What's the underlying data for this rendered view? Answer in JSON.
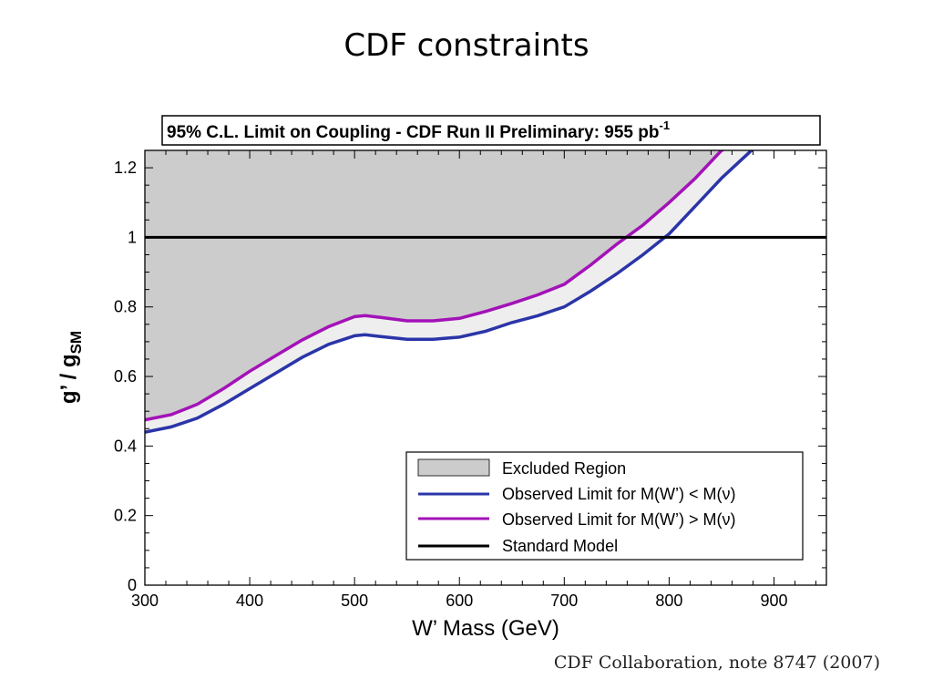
{
  "slide": {
    "title": "CDF constraints",
    "citation": "CDF Collaboration, note 8747 (2007)"
  },
  "chart_data": {
    "type": "line",
    "title": "95% C.L. Limit on Coupling - CDF Run II Preliminary: 955 pb",
    "title_superscript": "-1",
    "xlabel": "W’ Mass (GeV)",
    "ylabel_main": "g’ / g",
    "ylabel_sub": "SM",
    "xlim": [
      300,
      950
    ],
    "ylim": [
      0,
      1.25
    ],
    "xticks": [
      300,
      400,
      500,
      600,
      700,
      800,
      900
    ],
    "yticks": [
      0,
      0.2,
      0.4,
      0.6,
      0.8,
      1,
      1.2
    ],
    "ytick_labels": [
      "0",
      "0.2",
      "0.4",
      "0.6",
      "0.8",
      "1",
      "1.2"
    ],
    "legend_position": "bottom-right",
    "colors": {
      "excluded": "#cccccc",
      "band": "#eeeeee",
      "blue": "#2b35a8",
      "magenta": "#a312b8",
      "standard_model": "#000000"
    },
    "series": [
      {
        "name": "Observed Limit for M(W’) < M(ν)",
        "color": "#2b35a8",
        "x": [
          300,
          325,
          350,
          375,
          400,
          425,
          450,
          475,
          500,
          510,
          525,
          550,
          575,
          600,
          625,
          650,
          675,
          700,
          725,
          750,
          775,
          800,
          825,
          850,
          875,
          882
        ],
        "y": [
          0.44,
          0.455,
          0.48,
          0.52,
          0.565,
          0.61,
          0.655,
          0.692,
          0.717,
          0.72,
          0.715,
          0.707,
          0.707,
          0.713,
          0.73,
          0.755,
          0.775,
          0.8,
          0.845,
          0.895,
          0.95,
          1.01,
          1.09,
          1.17,
          1.24,
          1.26
        ]
      },
      {
        "name": "Observed Limit for M(W’) > M(ν)",
        "color": "#a312b8",
        "x": [
          300,
          325,
          350,
          375,
          400,
          425,
          450,
          475,
          500,
          510,
          525,
          550,
          575,
          600,
          625,
          650,
          675,
          700,
          725,
          750,
          775,
          800,
          825,
          850,
          858
        ],
        "y": [
          0.475,
          0.49,
          0.52,
          0.565,
          0.615,
          0.66,
          0.705,
          0.743,
          0.772,
          0.775,
          0.77,
          0.76,
          0.76,
          0.767,
          0.787,
          0.81,
          0.835,
          0.865,
          0.92,
          0.98,
          1.035,
          1.1,
          1.17,
          1.25,
          1.26
        ]
      },
      {
        "name": "Standard Model",
        "color": "#000000",
        "x": [
          300,
          950
        ],
        "y": [
          1,
          1
        ]
      }
    ],
    "legend": [
      {
        "label": "Excluded Region",
        "kind": "box",
        "color": "#cccccc"
      },
      {
        "label": "Observed Limit for M(W’) < M(ν)",
        "kind": "line",
        "color": "#2b35a8"
      },
      {
        "label": "Observed Limit for M(W’) > M(ν)",
        "kind": "line",
        "color": "#a312b8"
      },
      {
        "label": "Standard Model",
        "kind": "line",
        "color": "#000000"
      }
    ]
  }
}
